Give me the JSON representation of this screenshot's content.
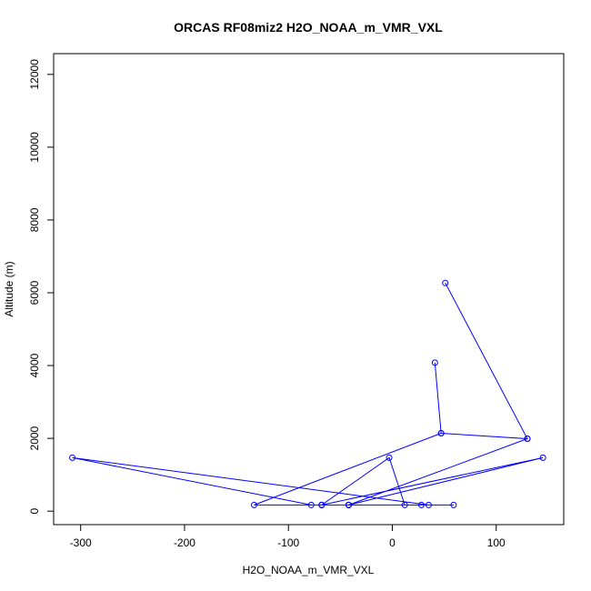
{
  "chart_data": {
    "type": "line",
    "title": "ORCAS RF08miz2 H2O_NOAA_m_VMR_VXL",
    "xlabel": "H2O_NOAA_m_VMR_VXL",
    "ylabel": "Altitude (m)",
    "xlim": [
      -326,
      165
    ],
    "ylim": [
      -370,
      12570
    ],
    "x_ticks": [
      -300,
      -200,
      -100,
      0,
      100
    ],
    "y_ticks": [
      0,
      2000,
      4000,
      6000,
      8000,
      10000,
      12000
    ],
    "grid": false,
    "series": [
      {
        "color": "#0000ff",
        "marker": "open-circle",
        "x": [
          51,
          130,
          47,
          41,
          47,
          -133,
          -68,
          -3,
          12,
          28,
          -68,
          145,
          -42,
          -68,
          59,
          -42,
          -78,
          -308,
          35,
          -42,
          130,
          -42,
          -68
        ],
        "y": [
          6270,
          1990,
          2140,
          4080,
          2140,
          170,
          170,
          1470,
          170,
          170,
          170,
          1470,
          170,
          170,
          170,
          170,
          170,
          1470,
          170,
          170,
          1990,
          170,
          170
        ]
      }
    ]
  }
}
